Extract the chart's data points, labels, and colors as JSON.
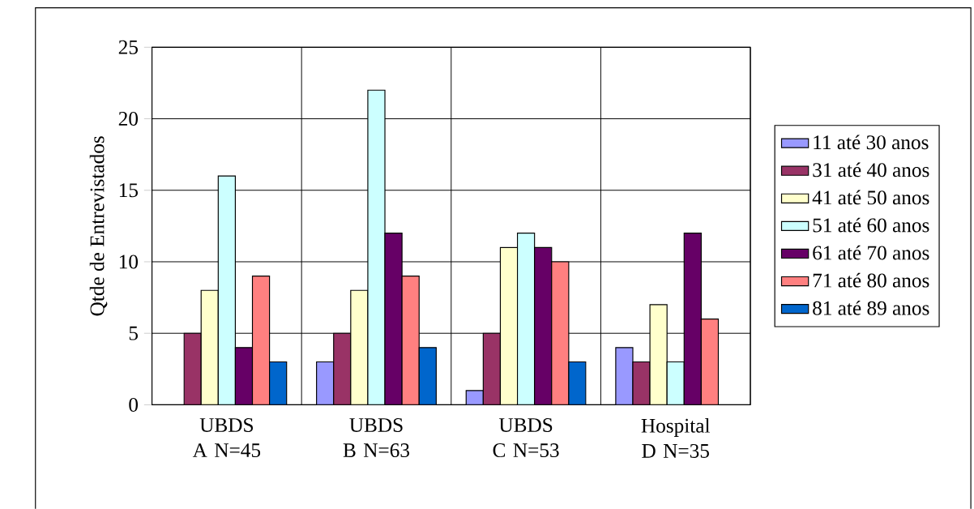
{
  "chart_data": {
    "type": "bar",
    "ylabel": "Qtde de Entrevistados",
    "categories": [
      "UBDS A N=45",
      "UBDS B N=63",
      "UBDS C N=53",
      "Hospital D N=35"
    ],
    "series": [
      {
        "name": "11 até 30 anos",
        "color": "#9999ff",
        "values": [
          null,
          3,
          1,
          4
        ]
      },
      {
        "name": "31 até 40 anos",
        "color": "#993366",
        "values": [
          5,
          5,
          5,
          3
        ]
      },
      {
        "name": "41 até 50 anos",
        "color": "#ffffcc",
        "values": [
          8,
          8,
          11,
          7
        ]
      },
      {
        "name": "51 até 60 anos",
        "color": "#ccffff",
        "values": [
          16,
          22,
          12,
          3
        ]
      },
      {
        "name": "61 até 70 anos",
        "color": "#660066",
        "values": [
          4,
          12,
          11,
          12
        ]
      },
      {
        "name": "71 até 80 anos",
        "color": "#ff8080",
        "values": [
          9,
          9,
          10,
          6
        ]
      },
      {
        "name": "81 até 89 anos",
        "color": "#0066cc",
        "values": [
          3,
          4,
          3,
          null
        ]
      }
    ],
    "ylim": [
      0,
      25
    ],
    "yticks": [
      0,
      5,
      10,
      15,
      20,
      25
    ],
    "grid": true,
    "legend": "right"
  }
}
